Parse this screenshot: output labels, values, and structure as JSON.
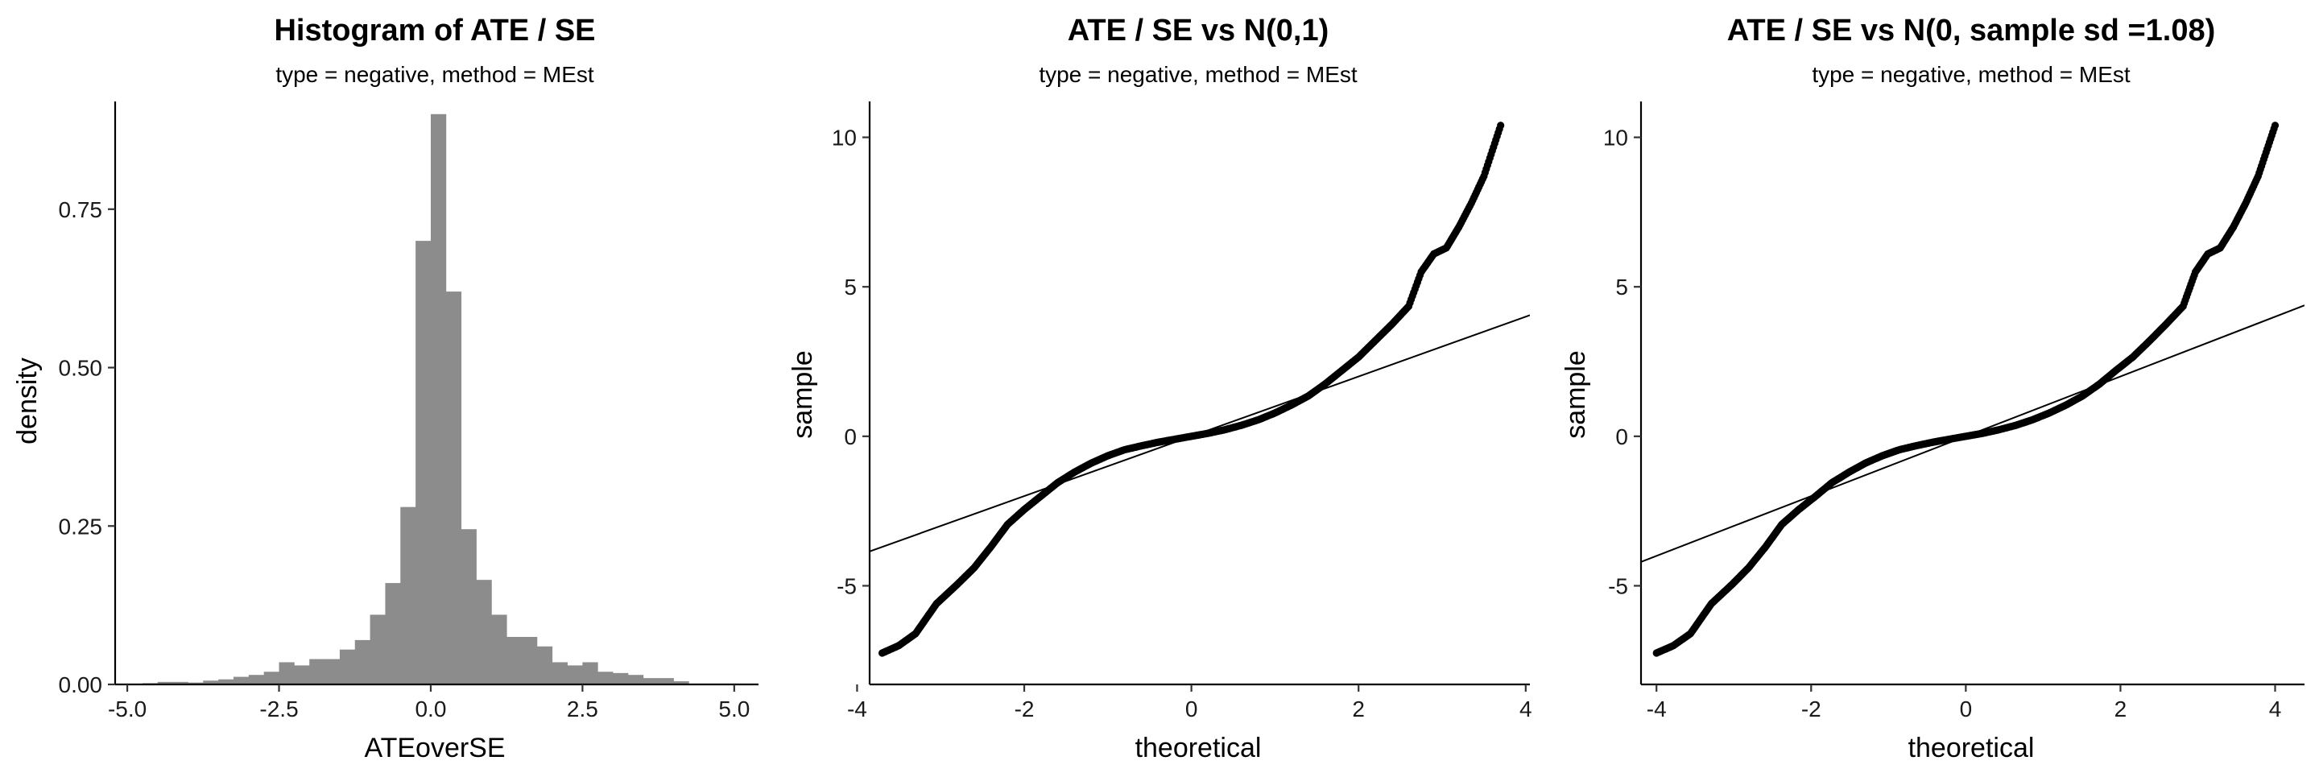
{
  "chart_data": [
    {
      "type": "bar",
      "title": "Histogram of ATE / SE",
      "subtitle": "type = negative, method = MEst",
      "xlabel": "ATEoverSE",
      "ylabel": "density",
      "xlim": [
        -5.2,
        5.4
      ],
      "ylim": [
        0,
        0.92
      ],
      "xticks": [
        -5.0,
        -2.5,
        0.0,
        2.5,
        5.0
      ],
      "xtick_labels": [
        "-5.0",
        "-2.5",
        "0.0",
        "2.5",
        "5.0"
      ],
      "yticks": [
        0.0,
        0.25,
        0.5,
        0.75
      ],
      "ytick_labels": [
        "0.00",
        "0.25",
        "0.50",
        "0.75"
      ],
      "bin_width": 0.25,
      "bin_start": -4.75,
      "values": [
        0.002,
        0.004,
        0.004,
        0.003,
        0.006,
        0.008,
        0.012,
        0.015,
        0.02,
        0.035,
        0.03,
        0.04,
        0.04,
        0.055,
        0.07,
        0.11,
        0.16,
        0.28,
        0.7,
        0.9,
        0.62,
        0.245,
        0.165,
        0.11,
        0.075,
        0.075,
        0.06,
        0.035,
        0.03,
        0.035,
        0.02,
        0.018,
        0.015,
        0.01,
        0.01,
        0.005
      ],
      "bar_color": "#8c8c8c",
      "grid": false
    },
    {
      "type": "scatter",
      "title": "ATE / SE vs N(0,1)",
      "subtitle": "type = negative, method = MEst",
      "xlabel": "theoretical",
      "ylabel": "sample",
      "xlim": [
        -3.85,
        4.05
      ],
      "ylim": [
        -8.3,
        11.2
      ],
      "xticks": [
        -4,
        -2,
        0,
        2,
        4
      ],
      "xtick_labels": [
        "-4",
        "-2",
        "0",
        "2",
        "4"
      ],
      "yticks": [
        -5,
        0,
        5,
        10
      ],
      "ytick_labels": [
        "-5",
        "0",
        "5",
        "10"
      ],
      "reference_line": {
        "intercept": 0,
        "slope": 1.0
      },
      "qq_knots": {
        "x": [
          -3.7,
          -3.5,
          -3.3,
          -3.05,
          -2.8,
          -2.6,
          -2.4,
          -2.2,
          -2.0,
          -1.8,
          -1.6,
          -1.4,
          -1.2,
          -1.0,
          -0.8,
          -0.6,
          -0.4,
          -0.2,
          0.0,
          0.2,
          0.4,
          0.6,
          0.8,
          1.0,
          1.2,
          1.4,
          1.6,
          1.8,
          2.0,
          2.2,
          2.4,
          2.6,
          2.75,
          2.9,
          3.05,
          3.2,
          3.35,
          3.5,
          3.7
        ],
        "y": [
          -7.25,
          -7.0,
          -6.6,
          -5.6,
          -4.95,
          -4.4,
          -3.7,
          -2.95,
          -2.45,
          -2.0,
          -1.55,
          -1.2,
          -0.9,
          -0.65,
          -0.45,
          -0.32,
          -0.2,
          -0.1,
          0.0,
          0.1,
          0.22,
          0.37,
          0.55,
          0.78,
          1.05,
          1.35,
          1.75,
          2.2,
          2.65,
          3.2,
          3.75,
          4.35,
          5.5,
          6.1,
          6.3,
          7.0,
          7.8,
          8.7,
          10.4
        ]
      },
      "point_color": "#000000",
      "grid": false
    },
    {
      "type": "scatter",
      "title": "ATE / SE vs N(0, sample sd =1.08)",
      "subtitle": "type = negative, method = MEst",
      "xlabel": "theoretical",
      "ylabel": "sample",
      "xlim": [
        -4.2,
        4.38
      ],
      "ylim": [
        -8.3,
        11.2
      ],
      "xticks": [
        -4,
        -2,
        0,
        2,
        4
      ],
      "xtick_labels": [
        "-4",
        "-2",
        "0",
        "2",
        "4"
      ],
      "yticks": [
        -5,
        0,
        5,
        10
      ],
      "ytick_labels": [
        "-5",
        "0",
        "5",
        "10"
      ],
      "reference_line": {
        "intercept": 0,
        "slope": 1.0
      },
      "qq_knots": {
        "x": [
          -4.0,
          -3.78,
          -3.56,
          -3.29,
          -3.02,
          -2.81,
          -2.59,
          -2.38,
          -2.16,
          -1.94,
          -1.73,
          -1.51,
          -1.3,
          -1.08,
          -0.86,
          -0.65,
          -0.43,
          -0.22,
          0.0,
          0.22,
          0.43,
          0.65,
          0.86,
          1.08,
          1.3,
          1.51,
          1.73,
          1.94,
          2.16,
          2.38,
          2.59,
          2.81,
          2.97,
          3.13,
          3.29,
          3.46,
          3.62,
          3.78,
          4.0
        ],
        "y": [
          -7.25,
          -7.0,
          -6.6,
          -5.6,
          -4.95,
          -4.4,
          -3.7,
          -2.95,
          -2.45,
          -2.0,
          -1.55,
          -1.2,
          -0.9,
          -0.65,
          -0.45,
          -0.32,
          -0.2,
          -0.1,
          0.0,
          0.1,
          0.22,
          0.37,
          0.55,
          0.78,
          1.05,
          1.35,
          1.75,
          2.2,
          2.65,
          3.2,
          3.75,
          4.35,
          5.5,
          6.1,
          6.3,
          7.0,
          7.8,
          8.7,
          10.4
        ]
      },
      "point_color": "#000000",
      "grid": false
    }
  ]
}
